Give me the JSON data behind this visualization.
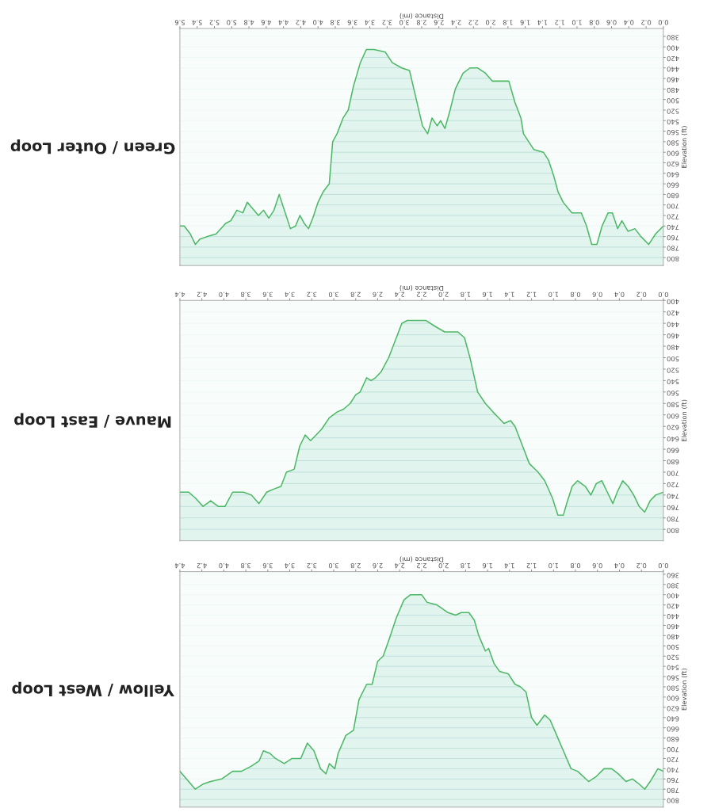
{
  "chart_data": [
    {
      "type": "area",
      "title": "Green / Outer Loop",
      "xlabel": "Distance (mi)",
      "ylabel": "Elevation (ft)",
      "grid": "y",
      "x": [
        0.0,
        0.09,
        0.17,
        0.26,
        0.33,
        0.41,
        0.48,
        0.53,
        0.59,
        0.64,
        0.71,
        0.77,
        0.83,
        0.89,
        0.95,
        1.06,
        1.16,
        1.22,
        1.27,
        1.33,
        1.39,
        1.5,
        1.62,
        1.65,
        1.72,
        1.79,
        1.89,
        1.98,
        2.06,
        2.15,
        2.24,
        2.32,
        2.41,
        2.47,
        2.53,
        2.58,
        2.62,
        2.68,
        2.73,
        2.79,
        2.84,
        2.89,
        2.94,
        3.03,
        3.14,
        3.22,
        3.35,
        3.44,
        3.51,
        3.59,
        3.65,
        3.71,
        3.78,
        3.83,
        3.87,
        3.94,
        4.0,
        4.06,
        4.11,
        4.16,
        4.21,
        4.26,
        4.32,
        4.39,
        4.45,
        4.51,
        4.57,
        4.63,
        4.69,
        4.82,
        4.87,
        4.94,
        5.01,
        5.07,
        5.18,
        5.28,
        5.37,
        5.42,
        5.48,
        5.55,
        5.6
      ],
      "series": [
        {
          "color": "#4cb865",
          "values": [
            740,
            755,
            775,
            760,
            745,
            750,
            730,
            745,
            715,
            715,
            740,
            775,
            775,
            740,
            715,
            715,
            695,
            675,
            645,
            615,
            600,
            595,
            565,
            535,
            505,
            465,
            465,
            465,
            450,
            440,
            440,
            450,
            480,
            520,
            555,
            540,
            550,
            535,
            565,
            550,
            515,
            480,
            445,
            440,
            430,
            410,
            405,
            405,
            430,
            475,
            520,
            535,
            565,
            580,
            660,
            675,
            695,
            725,
            745,
            735,
            720,
            740,
            745,
            710,
            680,
            710,
            725,
            710,
            720,
            695,
            715,
            710,
            730,
            735,
            755,
            760,
            765,
            775,
            755,
            740,
            740
          ]
        }
      ],
      "xlim": [
        5.6,
        0.0
      ],
      "ylim": [
        815,
        365
      ],
      "xticks": [
        {
          "value": 0,
          "label": "0.0"
        },
        0.2,
        0.4,
        0.6,
        0.8,
        {
          "value": 1,
          "label": "1.0"
        },
        1.2,
        1.4,
        1.6,
        1.8,
        {
          "value": 2,
          "label": "2.0"
        },
        2.2,
        2.4,
        2.6,
        2.8,
        {
          "value": 3,
          "label": "3.0"
        },
        3.2,
        3.4,
        3.6,
        3.8,
        {
          "value": 4,
          "label": "4.0"
        },
        4.2,
        4.4,
        4.6,
        4.8,
        {
          "value": 5,
          "label": "5.0"
        },
        5.2,
        5.4,
        5.6
      ],
      "yticks": [
        380,
        400,
        420,
        440,
        460,
        480,
        500,
        520,
        540,
        560,
        580,
        600,
        620,
        640,
        660,
        680,
        700,
        720,
        740,
        760,
        780,
        800
      ]
    },
    {
      "type": "area",
      "title": "Mauve / East Loop",
      "xlabel": "Distance (mi)",
      "ylabel": "Elevation (ft)",
      "grid": "y",
      "x": [
        0.0,
        0.07,
        0.12,
        0.17,
        0.22,
        0.27,
        0.32,
        0.37,
        0.42,
        0.46,
        0.51,
        0.56,
        0.61,
        0.66,
        0.71,
        0.78,
        0.83,
        0.88,
        0.91,
        0.96,
        1.01,
        1.08,
        1.14,
        1.22,
        1.28,
        1.35,
        1.39,
        1.45,
        1.5,
        1.55,
        1.62,
        1.69,
        1.76,
        1.81,
        1.87,
        1.99,
        2.08,
        2.16,
        2.26,
        2.33,
        2.38,
        2.43,
        2.5,
        2.57,
        2.62,
        2.66,
        2.7,
        2.76,
        2.8,
        2.85,
        2.91,
        2.97,
        3.04,
        3.11,
        3.16,
        3.21,
        3.26,
        3.31,
        3.36,
        3.43,
        3.48,
        3.55,
        3.61,
        3.68,
        3.75,
        3.82,
        3.92,
        3.99,
        4.05,
        4.12,
        4.19,
        4.26,
        4.32,
        4.4
      ],
      "series": [
        {
          "color": "#4cb865",
          "values": [
            735,
            740,
            750,
            770,
            760,
            740,
            725,
            715,
            735,
            755,
            735,
            715,
            720,
            740,
            725,
            715,
            725,
            755,
            775,
            775,
            745,
            715,
            700,
            685,
            655,
            620,
            610,
            615,
            605,
            595,
            580,
            560,
            500,
            465,
            455,
            455,
            445,
            435,
            435,
            435,
            440,
            465,
            500,
            525,
            535,
            540,
            535,
            560,
            565,
            580,
            590,
            595,
            605,
            625,
            635,
            645,
            635,
            655,
            695,
            700,
            725,
            730,
            735,
            755,
            740,
            735,
            735,
            760,
            760,
            750,
            760,
            745,
            735,
            735
          ]
        }
      ],
      "xlim": [
        4.4,
        0.0
      ],
      "ylim": [
        820,
        400
      ],
      "xticks": [
        {
          "value": 0,
          "label": "0.0"
        },
        0.2,
        0.4,
        0.6,
        0.8,
        {
          "value": 1,
          "label": "1.0"
        },
        1.2,
        1.4,
        1.6,
        1.8,
        {
          "value": 2,
          "label": "2.0"
        },
        2.2,
        2.4,
        2.6,
        2.8,
        {
          "value": 3,
          "label": "3.0"
        },
        3.2,
        3.4,
        3.6,
        3.8,
        {
          "value": 4,
          "label": "4.0"
        },
        4.2,
        4.4
      ],
      "yticks": [
        400,
        420,
        440,
        460,
        480,
        500,
        520,
        540,
        560,
        580,
        600,
        620,
        640,
        660,
        680,
        700,
        720,
        740,
        760,
        780,
        800
      ]
    },
    {
      "type": "area",
      "title": "Yellow / West Loop",
      "xlabel": "Distance (mi)",
      "ylabel": "Elevation (ft)",
      "grid": "y",
      "x": [
        0.0,
        0.05,
        0.12,
        0.17,
        0.22,
        0.28,
        0.34,
        0.41,
        0.47,
        0.54,
        0.61,
        0.68,
        0.78,
        0.84,
        0.91,
        0.96,
        1.03,
        1.08,
        1.15,
        1.2,
        1.25,
        1.3,
        1.35,
        1.41,
        1.49,
        1.54,
        1.59,
        1.62,
        1.68,
        1.72,
        1.77,
        1.84,
        1.89,
        1.96,
        2.06,
        2.15,
        2.2,
        2.3,
        2.36,
        2.43,
        2.5,
        2.55,
        2.6,
        2.65,
        2.7,
        2.77,
        2.82,
        2.89,
        2.96,
        2.99,
        3.04,
        3.07,
        3.12,
        3.18,
        3.24,
        3.3,
        3.38,
        3.45,
        3.53,
        3.58,
        3.64,
        3.68,
        3.75,
        3.84,
        3.92,
        4.02,
        4.12,
        4.19,
        4.26,
        4.32,
        4.4
      ],
      "series": [
        {
          "color": "#4cb865",
          "values": [
            745,
            740,
            765,
            780,
            770,
            760,
            765,
            750,
            740,
            740,
            755,
            765,
            745,
            740,
            705,
            680,
            645,
            635,
            655,
            640,
            590,
            580,
            575,
            555,
            550,
            535,
            505,
            510,
            480,
            450,
            435,
            435,
            440,
            435,
            420,
            415,
            400,
            400,
            410,
            445,
            490,
            520,
            530,
            575,
            575,
            605,
            665,
            675,
            710,
            740,
            730,
            750,
            740,
            705,
            690,
            720,
            720,
            730,
            720,
            710,
            705,
            725,
            735,
            745,
            745,
            760,
            765,
            770,
            780,
            765,
            745
          ]
        }
      ],
      "xlim": [
        4.4,
        0.0
      ],
      "ylim": [
        815,
        355
      ],
      "xticks": [
        {
          "value": 0,
          "label": "0.0"
        },
        0.2,
        0.4,
        0.6,
        0.8,
        {
          "value": 1,
          "label": "1.0"
        },
        1.2,
        1.4,
        1.6,
        1.8,
        {
          "value": 2,
          "label": "2.0"
        },
        2.2,
        2.4,
        2.6,
        2.8,
        {
          "value": 3,
          "label": "3.0"
        },
        3.2,
        3.4,
        3.6,
        3.8,
        {
          "value": 4,
          "label": "4.0"
        },
        4.2,
        4.4
      ],
      "yticks": [
        360,
        380,
        400,
        420,
        440,
        460,
        480,
        500,
        520,
        540,
        560,
        580,
        600,
        620,
        640,
        660,
        680,
        700,
        720,
        740,
        760,
        780,
        800
      ]
    }
  ]
}
